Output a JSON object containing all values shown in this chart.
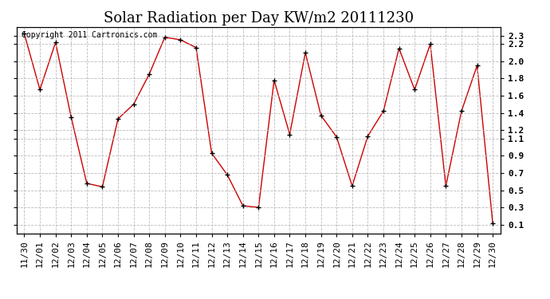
{
  "title": "Solar Radiation per Day KW/m2 20111230",
  "copyright_text": "Copyright 2011 Cartronics.com",
  "dates": [
    "11/30",
    "12/01",
    "12/02",
    "12/03",
    "12/04",
    "12/05",
    "12/06",
    "12/07",
    "12/08",
    "12/09",
    "12/10",
    "12/11",
    "12/12",
    "12/13",
    "12/14",
    "12/15",
    "12/16",
    "12/17",
    "12/18",
    "12/19",
    "12/20",
    "12/21",
    "12/22",
    "12/23",
    "12/24",
    "12/25",
    "12/26",
    "12/27",
    "12/28",
    "12/29",
    "12/30"
  ],
  "values": [
    2.32,
    1.67,
    2.22,
    1.35,
    0.58,
    0.54,
    1.33,
    1.5,
    1.85,
    2.28,
    2.25,
    2.16,
    0.93,
    0.68,
    0.32,
    0.3,
    1.78,
    1.15,
    2.1,
    1.37,
    1.12,
    0.55,
    1.13,
    1.42,
    2.15,
    1.67,
    2.2,
    0.55,
    1.42,
    1.95,
    0.12
  ],
  "line_color": "#cc0000",
  "marker_color": "#000000",
  "bg_color": "#ffffff",
  "grid_color": "#bbbbbb",
  "ylim_min": 0.0,
  "ylim_max": 2.4,
  "yticks": [
    0.1,
    0.3,
    0.5,
    0.7,
    0.9,
    1.1,
    1.2,
    1.4,
    1.6,
    1.8,
    2.0,
    2.2,
    2.3
  ],
  "title_fontsize": 13,
  "copyright_fontsize": 7,
  "tick_fontsize": 8,
  "figwidth": 6.9,
  "figheight": 3.75,
  "dpi": 100
}
